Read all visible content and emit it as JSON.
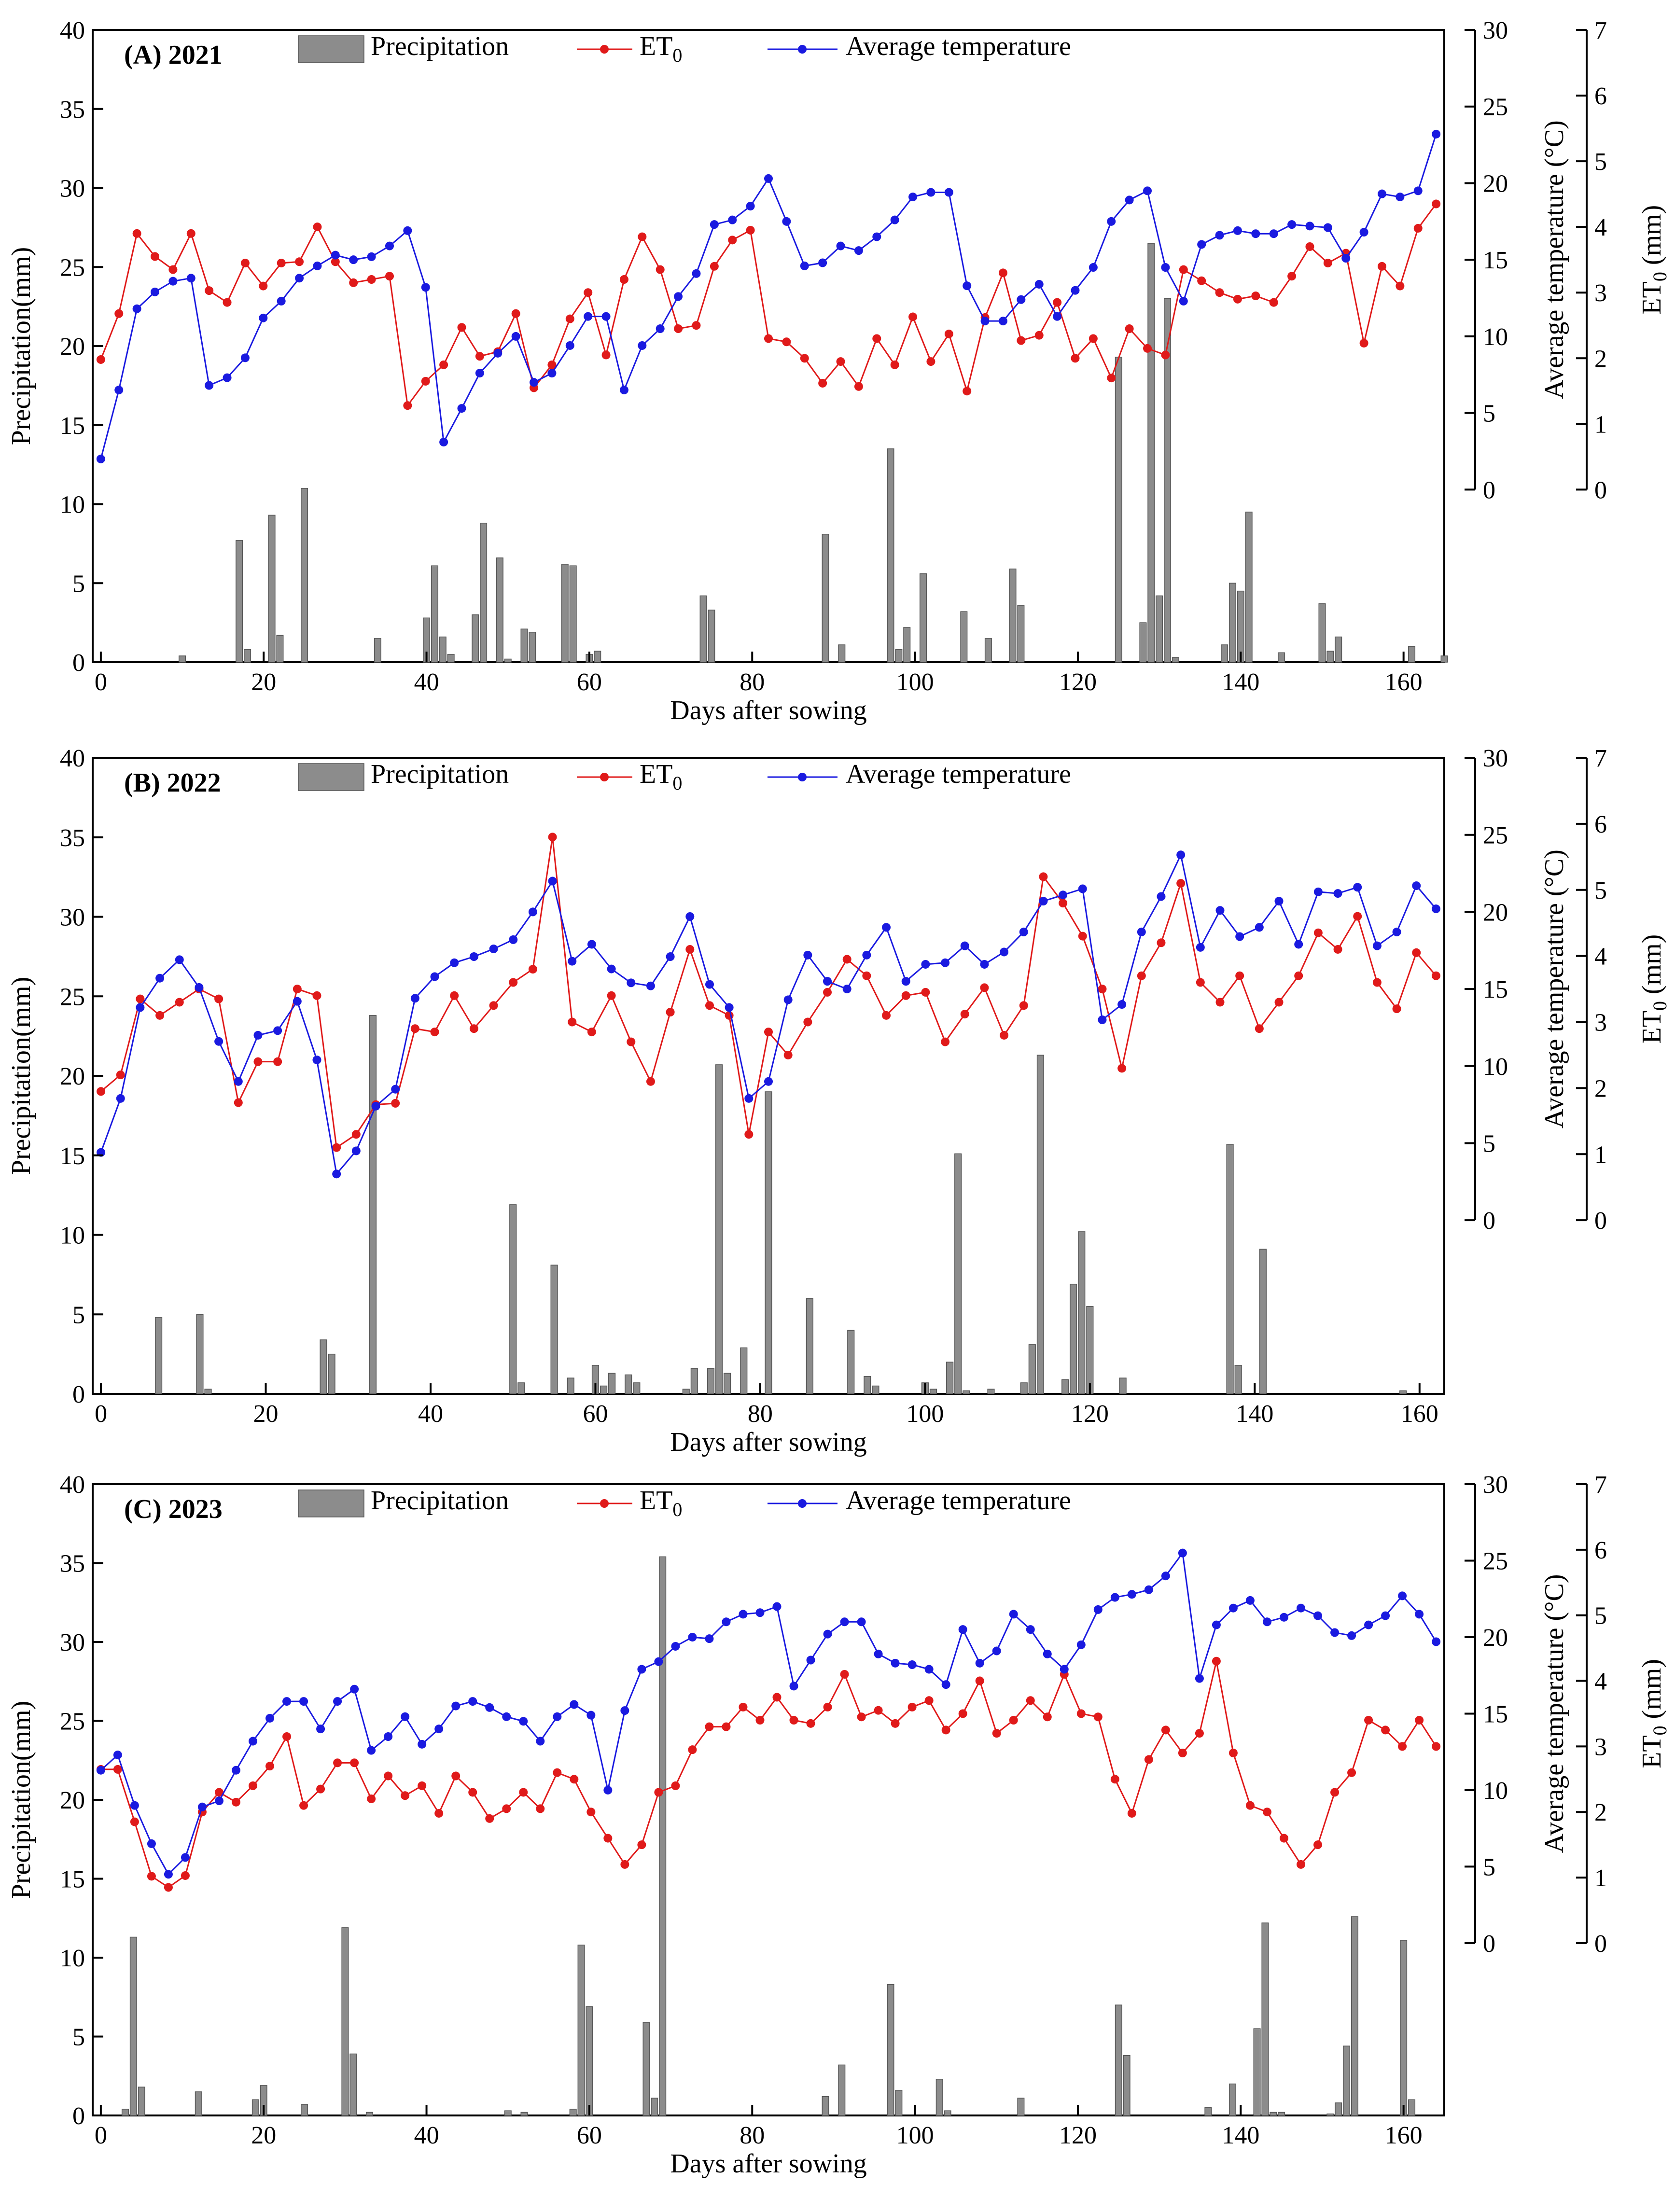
{
  "colors": {
    "precipitation": "#8c8c8c",
    "et0": "#e01a1a",
    "temperature": "#1a1ae0"
  },
  "chart_data": [
    {
      "type": "bar+line",
      "title": "(A) 2021",
      "xlabel": "Days after sowing",
      "ylabel": "Precipitation(mm)",
      "y2label": "Average temperature (°C)",
      "y3label": "ET0 (mm)",
      "xlim": [
        -1,
        165
      ],
      "ylim": [
        0,
        40
      ],
      "y2lim": [
        0,
        30
      ],
      "y3lim": [
        0,
        7
      ],
      "xticks": [
        0,
        20,
        40,
        60,
        80,
        100,
        120,
        140,
        160
      ],
      "yticks": [
        0,
        5,
        10,
        15,
        20,
        25,
        30,
        35,
        40
      ],
      "y2ticks": [
        0,
        5,
        10,
        15,
        20,
        25,
        30
      ],
      "y3ticks": [
        0,
        1,
        2,
        3,
        4,
        5,
        6,
        7
      ],
      "legend": {
        "precipitation": "Precipitation",
        "et0_main": "ET",
        "et0_sub": "0",
        "temperature": "Average temperature"
      },
      "precipitation": [
        [
          10,
          0.4
        ],
        [
          17,
          7.7
        ],
        [
          18,
          0.8
        ],
        [
          21,
          9.3
        ],
        [
          22,
          1.7
        ],
        [
          25,
          11.0
        ],
        [
          34,
          1.5
        ],
        [
          40,
          2.8
        ],
        [
          41,
          6.1
        ],
        [
          42,
          1.6
        ],
        [
          43,
          0.5
        ],
        [
          46,
          3.0
        ],
        [
          47,
          8.8
        ],
        [
          49,
          6.6
        ],
        [
          50,
          0.2
        ],
        [
          52,
          2.1
        ],
        [
          53,
          1.9
        ],
        [
          57,
          6.2
        ],
        [
          58,
          6.1
        ],
        [
          60,
          0.5
        ],
        [
          61,
          0.7
        ],
        [
          74,
          4.2
        ],
        [
          75,
          3.3
        ],
        [
          89,
          8.1
        ],
        [
          91,
          1.1
        ],
        [
          97,
          13.5
        ],
        [
          98,
          0.8
        ],
        [
          99,
          2.2
        ],
        [
          101,
          5.6
        ],
        [
          106,
          3.2
        ],
        [
          109,
          1.5
        ],
        [
          112,
          5.9
        ],
        [
          113,
          3.6
        ],
        [
          125,
          19.3
        ],
        [
          128,
          2.5
        ],
        [
          129,
          26.5
        ],
        [
          130,
          4.2
        ],
        [
          131,
          23.0
        ],
        [
          132,
          0.3
        ],
        [
          138,
          1.1
        ],
        [
          139,
          5.0
        ],
        [
          140,
          4.5
        ],
        [
          141,
          9.5
        ],
        [
          145,
          0.6
        ],
        [
          150,
          3.7
        ],
        [
          151,
          0.7
        ],
        [
          152,
          1.6
        ],
        [
          161,
          1.0
        ],
        [
          165,
          0.4
        ]
      ],
      "temperature": [
        2.0,
        6.5,
        11.8,
        12.9,
        13.6,
        13.8,
        6.8,
        7.3,
        8.6,
        11.2,
        12.3,
        13.8,
        14.6,
        15.3,
        15.0,
        15.2,
        15.9,
        16.9,
        13.2,
        3.1,
        5.3,
        7.6,
        8.9,
        10.0,
        7.0,
        7.6,
        9.4,
        11.3,
        11.3,
        6.5,
        9.4,
        10.5,
        12.6,
        14.1,
        17.3,
        17.6,
        18.5,
        20.3,
        17.5,
        14.6,
        14.8,
        15.9,
        15.6,
        16.5,
        17.6,
        19.1,
        19.4,
        19.4,
        13.3,
        11.0,
        11.0,
        12.4,
        13.4,
        11.3,
        13.0,
        14.5,
        17.5,
        18.9,
        19.5,
        14.5,
        12.3,
        16.0,
        16.6,
        16.9,
        16.7,
        16.7,
        17.3,
        17.2,
        17.1,
        15.1,
        16.8,
        19.3,
        19.1,
        19.5,
        23.2
      ],
      "et0": [
        1.98,
        2.68,
        3.9,
        3.55,
        3.35,
        3.9,
        3.03,
        2.85,
        3.45,
        3.1,
        3.45,
        3.47,
        4.0,
        3.47,
        3.15,
        3.2,
        3.25,
        1.28,
        1.65,
        1.9,
        2.47,
        2.03,
        2.1,
        2.68,
        1.55,
        1.9,
        2.6,
        3.0,
        2.05,
        3.2,
        3.85,
        3.35,
        2.45,
        2.5,
        3.4,
        3.8,
        3.95,
        2.3,
        2.25,
        2.0,
        1.62,
        1.95,
        1.57,
        2.3,
        1.9,
        2.63,
        1.95,
        2.37,
        1.5,
        2.62,
        3.3,
        2.27,
        2.35,
        2.85,
        2.0,
        2.3,
        1.7,
        2.45,
        2.15,
        2.05,
        3.35,
        3.18,
        3.0,
        2.9,
        2.95,
        2.85,
        3.25,
        3.7,
        3.45,
        3.6,
        2.23,
        3.4,
        3.1,
        3.98,
        4.35
      ]
    },
    {
      "type": "bar+line",
      "title": "(B) 2022",
      "xlabel": "Days after sowing",
      "ylabel": "Precipitation(mm)",
      "y2label": "Average temperature (°C)",
      "y3label": "ET0 (mm)",
      "xlim": [
        -1,
        163
      ],
      "ylim": [
        0,
        40
      ],
      "y2lim": [
        0,
        30
      ],
      "y3lim": [
        0,
        7
      ],
      "xticks": [
        0,
        20,
        40,
        60,
        80,
        100,
        120,
        140,
        160
      ],
      "yticks": [
        0,
        5,
        10,
        15,
        20,
        25,
        30,
        35,
        40
      ],
      "y2ticks": [
        0,
        5,
        10,
        15,
        20,
        25,
        30
      ],
      "y3ticks": [
        0,
        1,
        2,
        3,
        4,
        5,
        6,
        7
      ],
      "legend": {
        "precipitation": "Precipitation",
        "et0_main": "ET",
        "et0_sub": "0",
        "temperature": "Average temperature"
      },
      "precipitation": [
        [
          7,
          4.8
        ],
        [
          12,
          5.0
        ],
        [
          13,
          0.3
        ],
        [
          27,
          3.4
        ],
        [
          28,
          2.5
        ],
        [
          33,
          23.8
        ],
        [
          50,
          11.9
        ],
        [
          51,
          0.7
        ],
        [
          55,
          8.1
        ],
        [
          57,
          1.0
        ],
        [
          60,
          1.8
        ],
        [
          61,
          0.5
        ],
        [
          62,
          1.3
        ],
        [
          64,
          1.2
        ],
        [
          65,
          0.7
        ],
        [
          71,
          0.3
        ],
        [
          72,
          1.6
        ],
        [
          74,
          1.6
        ],
        [
          75,
          20.7
        ],
        [
          76,
          1.3
        ],
        [
          78,
          2.9
        ],
        [
          81,
          19.0
        ],
        [
          86,
          6.0
        ],
        [
          91,
          4.0
        ],
        [
          93,
          1.1
        ],
        [
          94,
          0.5
        ],
        [
          100,
          0.7
        ],
        [
          101,
          0.3
        ],
        [
          103,
          2.0
        ],
        [
          104,
          15.1
        ],
        [
          105,
          0.2
        ],
        [
          108,
          0.3
        ],
        [
          112,
          0.7
        ],
        [
          113,
          3.1
        ],
        [
          114,
          21.3
        ],
        [
          117,
          0.9
        ],
        [
          118,
          6.9
        ],
        [
          119,
          10.2
        ],
        [
          120,
          5.5
        ],
        [
          124,
          1.0
        ],
        [
          137,
          15.7
        ],
        [
          138,
          1.8
        ],
        [
          141,
          9.1
        ],
        [
          158,
          0.2
        ]
      ],
      "temperature": [
        4.4,
        7.9,
        13.8,
        15.7,
        16.9,
        15.1,
        11.6,
        9.0,
        12.0,
        12.3,
        14.2,
        10.4,
        3.0,
        4.5,
        7.4,
        8.5,
        14.4,
        15.8,
        16.7,
        17.1,
        17.6,
        18.2,
        20.0,
        22.0,
        16.8,
        17.9,
        16.3,
        15.4,
        15.2,
        17.1,
        19.7,
        15.3,
        13.8,
        7.9,
        9.0,
        14.3,
        17.2,
        15.5,
        15.0,
        17.2,
        19.0,
        15.5,
        16.6,
        16.7,
        17.8,
        16.6,
        17.4,
        18.7,
        20.7,
        21.1,
        21.5,
        13.0,
        14.0,
        18.7,
        21.0,
        23.7,
        17.7,
        20.1,
        18.4,
        19.0,
        20.7,
        17.9,
        21.3,
        21.2,
        21.6,
        17.8,
        18.7,
        21.7,
        20.2
      ],
      "et0": [
        1.95,
        2.2,
        3.35,
        3.1,
        3.3,
        3.5,
        3.35,
        1.78,
        2.4,
        2.4,
        3.5,
        3.4,
        1.1,
        1.3,
        1.75,
        1.77,
        2.9,
        2.85,
        3.4,
        2.9,
        3.25,
        3.6,
        3.8,
        5.8,
        3.0,
        2.85,
        3.4,
        2.7,
        2.1,
        3.15,
        4.1,
        3.25,
        3.1,
        1.3,
        2.85,
        2.5,
        3.0,
        3.45,
        3.95,
        3.7,
        3.1,
        3.4,
        3.45,
        2.7,
        3.12,
        3.52,
        2.8,
        3.25,
        5.2,
        4.8,
        4.3,
        3.5,
        2.3,
        3.7,
        4.2,
        5.1,
        3.6,
        3.3,
        3.7,
        2.9,
        3.3,
        3.7,
        4.35,
        4.1,
        4.6,
        3.6,
        3.2,
        4.05,
        3.7
      ]
    },
    {
      "type": "bar+line",
      "title": "(C) 2023",
      "xlabel": "Days after sowing",
      "ylabel": "Precipitation(mm)",
      "y2label": "Average temperature (°C)",
      "y3label": "ET0 (mm)",
      "xlim": [
        -1,
        165
      ],
      "ylim": [
        0,
        40
      ],
      "y2lim": [
        0,
        30
      ],
      "y3lim": [
        0,
        7
      ],
      "xticks": [
        0,
        20,
        40,
        60,
        80,
        100,
        120,
        140,
        160
      ],
      "yticks": [
        0,
        5,
        10,
        15,
        20,
        25,
        30,
        35,
        40
      ],
      "y2ticks": [
        0,
        5,
        10,
        15,
        20,
        25,
        30
      ],
      "y3ticks": [
        0,
        1,
        2,
        3,
        4,
        5,
        6,
        7
      ],
      "legend": {
        "precipitation": "Precipitation",
        "et0_main": "ET",
        "et0_sub": "0",
        "temperature": "Average temperature"
      },
      "precipitation": [
        [
          3,
          0.4
        ],
        [
          4,
          11.3
        ],
        [
          5,
          1.8
        ],
        [
          12,
          1.5
        ],
        [
          19,
          1.0
        ],
        [
          20,
          1.9
        ],
        [
          25,
          0.7
        ],
        [
          30,
          11.9
        ],
        [
          31,
          3.9
        ],
        [
          33,
          0.2
        ],
        [
          50,
          0.3
        ],
        [
          52,
          0.2
        ],
        [
          58,
          0.4
        ],
        [
          59,
          10.8
        ],
        [
          60,
          6.9
        ],
        [
          67,
          5.9
        ],
        [
          68,
          1.1
        ],
        [
          69,
          35.4
        ],
        [
          89,
          1.2
        ],
        [
          91,
          3.2
        ],
        [
          97,
          8.3
        ],
        [
          98,
          1.6
        ],
        [
          103,
          2.3
        ],
        [
          104,
          0.3
        ],
        [
          113,
          1.1
        ],
        [
          125,
          7.0
        ],
        [
          126,
          3.8
        ],
        [
          136,
          0.5
        ],
        [
          139,
          2.0
        ],
        [
          142,
          5.5
        ],
        [
          143,
          12.2
        ],
        [
          144,
          0.2
        ],
        [
          145,
          0.2
        ],
        [
          151,
          0.1
        ],
        [
          152,
          0.8
        ],
        [
          153,
          4.4
        ],
        [
          154,
          12.6
        ],
        [
          160,
          11.1
        ],
        [
          161,
          1.0
        ]
      ],
      "temperature": [
        11.3,
        12.3,
        9.0,
        6.5,
        4.5,
        5.6,
        8.9,
        9.3,
        11.3,
        13.2,
        14.7,
        15.8,
        15.8,
        14.0,
        15.8,
        16.6,
        12.6,
        13.5,
        14.8,
        13.0,
        14.0,
        15.5,
        15.8,
        15.4,
        14.8,
        14.5,
        13.2,
        14.8,
        15.6,
        14.9,
        10.0,
        15.2,
        17.9,
        18.4,
        19.4,
        20.0,
        19.9,
        21.0,
        21.5,
        21.6,
        22.0,
        16.8,
        18.5,
        20.2,
        21.0,
        21.0,
        18.9,
        18.3,
        18.2,
        17.9,
        16.9,
        20.5,
        18.3,
        19.1,
        21.5,
        20.5,
        18.9,
        17.9,
        19.5,
        21.8,
        22.6,
        22.8,
        23.1,
        24.0,
        25.5,
        17.3,
        20.8,
        21.9,
        22.4,
        21.0,
        21.3,
        21.9,
        21.4,
        20.3,
        20.1,
        20.8,
        21.4,
        22.7,
        21.5,
        19.7
      ],
      "et0": [
        2.65,
        2.65,
        1.85,
        1.02,
        0.85,
        1.03,
        2.0,
        2.3,
        2.15,
        2.4,
        2.7,
        3.15,
        2.1,
        2.35,
        2.75,
        2.75,
        2.2,
        2.55,
        2.25,
        2.4,
        1.98,
        2.55,
        2.3,
        1.9,
        2.05,
        2.3,
        2.05,
        2.6,
        2.5,
        2.0,
        1.6,
        1.2,
        1.5,
        2.3,
        2.4,
        2.95,
        3.3,
        3.3,
        3.6,
        3.4,
        3.75,
        3.4,
        3.35,
        3.6,
        4.1,
        3.45,
        3.55,
        3.35,
        3.6,
        3.7,
        3.25,
        3.5,
        4.0,
        3.2,
        3.4,
        3.7,
        3.45,
        4.1,
        3.5,
        3.45,
        2.5,
        1.98,
        2.8,
        3.25,
        2.9,
        3.2,
        4.3,
        2.9,
        2.1,
        2.0,
        1.6,
        1.2,
        1.5,
        2.3,
        2.6,
        3.4,
        3.25,
        3.0,
        3.4,
        3.0
      ]
    }
  ]
}
